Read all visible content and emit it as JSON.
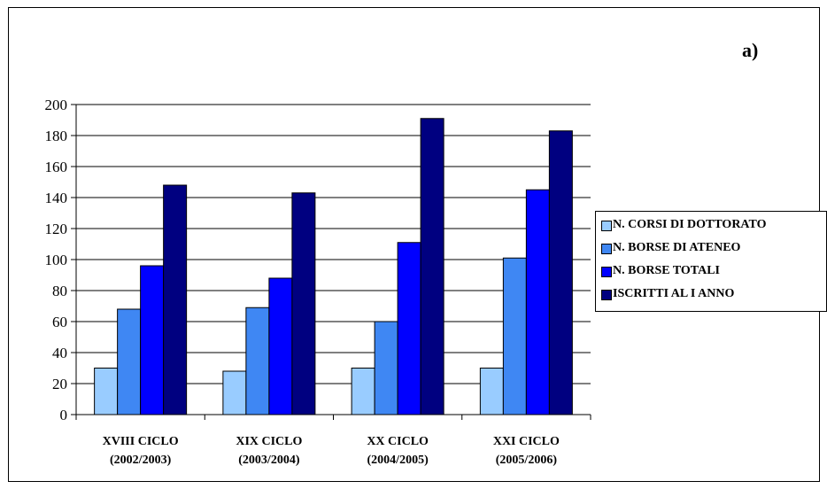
{
  "corner_label": "a)",
  "chart_data": {
    "type": "bar",
    "categories": [
      [
        "XVIII CICLO",
        "(2002/2003)"
      ],
      [
        "XIX CICLO",
        "(2003/2004)"
      ],
      [
        "XX CICLO",
        "(2004/2005)"
      ],
      [
        "XXI CICLO",
        "(2005/2006)"
      ]
    ],
    "series": [
      {
        "name": "N. CORSI DI DOTTORATO",
        "color": "#99ccff",
        "values": [
          30,
          28,
          30,
          30
        ]
      },
      {
        "name": "N. BORSE DI ATENEO",
        "color": "#3f87f3",
        "values": [
          68,
          69,
          60,
          101
        ]
      },
      {
        "name": "N. BORSE TOTALI",
        "color": "#0000ff",
        "values": [
          96,
          88,
          111,
          145
        ]
      },
      {
        "name": "ISCRITTI AL I ANNO",
        "color": "#000080",
        "values": [
          148,
          143,
          191,
          183
        ]
      }
    ],
    "ylim": [
      0,
      200
    ],
    "yticks": [
      0,
      20,
      40,
      60,
      80,
      100,
      120,
      140,
      160,
      180,
      200
    ],
    "grid": true,
    "legend_position": "right"
  }
}
